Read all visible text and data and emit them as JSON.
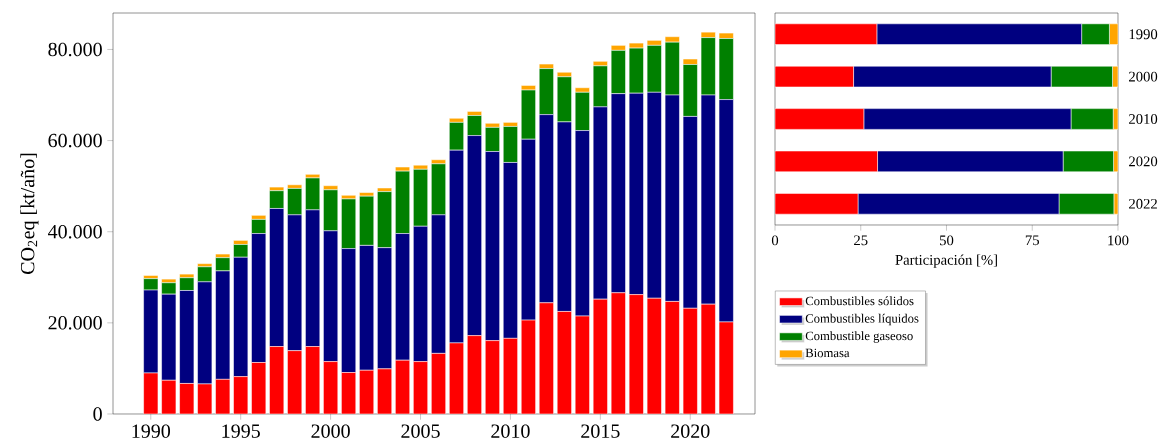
{
  "chart_data": [
    {
      "type": "bar",
      "stacked": true,
      "ylabel": "CO$_{2}$eq [kt/año]",
      "x": [
        1990,
        1991,
        1992,
        1993,
        1994,
        1995,
        1996,
        1997,
        1998,
        1999,
        2000,
        2001,
        2002,
        2003,
        2004,
        2005,
        2006,
        2007,
        2008,
        2009,
        2010,
        2011,
        2012,
        2013,
        2014,
        2015,
        2016,
        2017,
        2018,
        2019,
        2020,
        2021,
        2022
      ],
      "xlim": [
        1987.9,
        2023.6
      ],
      "xticks": [
        1990,
        1995,
        2000,
        2005,
        2010,
        2015,
        2020
      ],
      "ylim": [
        0,
        88000
      ],
      "yticks": [
        0,
        {
          "value": 20000,
          "label": "20.000"
        },
        {
          "value": 40000,
          "label": "40.000"
        },
        {
          "value": 60000,
          "label": "60.000"
        },
        {
          "value": 80000,
          "label": "80.000"
        }
      ],
      "series": [
        {
          "color": "#ff0000",
          "values": [
            9000,
            7400,
            6700,
            6600,
            7600,
            8200,
            11300,
            14800,
            13900,
            14800,
            11500,
            9100,
            9600,
            9900,
            11800,
            11500,
            13300,
            15600,
            17200,
            16100,
            16600,
            20600,
            24400,
            22500,
            21500,
            25200,
            26600,
            26200,
            25400,
            24700,
            23200,
            24100,
            20200
          ]
        },
        {
          "color": "#000080",
          "values": [
            18200,
            18900,
            20400,
            22400,
            23800,
            26200,
            28300,
            30300,
            29800,
            30000,
            28700,
            27200,
            27400,
            26600,
            27800,
            29700,
            30400,
            42300,
            43900,
            41500,
            38600,
            39700,
            41300,
            41600,
            40700,
            42200,
            43700,
            44200,
            45200,
            45300,
            42100,
            45900,
            48800
          ]
        },
        {
          "color": "#008000",
          "values": [
            2500,
            2500,
            2800,
            3300,
            2900,
            2800,
            3100,
            3900,
            5800,
            7000,
            9000,
            10900,
            10800,
            12300,
            13700,
            12500,
            11200,
            6100,
            4400,
            5300,
            7900,
            10800,
            10100,
            9900,
            8400,
            9000,
            9500,
            9900,
            10300,
            11600,
            11400,
            12600,
            13400
          ]
        },
        {
          "color": "#ffa500",
          "values": [
            700,
            800,
            800,
            700,
            800,
            900,
            900,
            800,
            800,
            800,
            900,
            800,
            800,
            800,
            900,
            900,
            900,
            900,
            900,
            900,
            900,
            1000,
            1000,
            1000,
            1000,
            1000,
            1100,
            1100,
            1100,
            1200,
            1200,
            1200,
            1200
          ]
        }
      ]
    },
    {
      "type": "bar",
      "stacked": true,
      "orientation": "horizontal",
      "xlabel": "Participación [%]",
      "categories": [
        "1990",
        "2000",
        "2010",
        "2020",
        "2022"
      ],
      "xlim": [
        0,
        100
      ],
      "xticks": [
        0,
        25,
        50,
        75,
        100
      ],
      "legend": "bottom",
      "series": [
        {
          "name": "Combustibles sólidos",
          "color": "#ff0000",
          "values": [
            29.7,
            22.9,
            25.9,
            29.9,
            24.2
          ]
        },
        {
          "name": "Combustibles líquidos",
          "color": "#000080",
          "values": [
            59.7,
            57.6,
            60.4,
            54.1,
            58.6
          ]
        },
        {
          "name": "Combustible gaseoso",
          "color": "#008000",
          "values": [
            8.1,
            17.9,
            12.3,
            14.7,
            16.0
          ]
        },
        {
          "name": "Biomasa",
          "color": "#ffa500",
          "values": [
            2.5,
            1.6,
            1.4,
            1.3,
            1.2
          ]
        }
      ]
    }
  ]
}
